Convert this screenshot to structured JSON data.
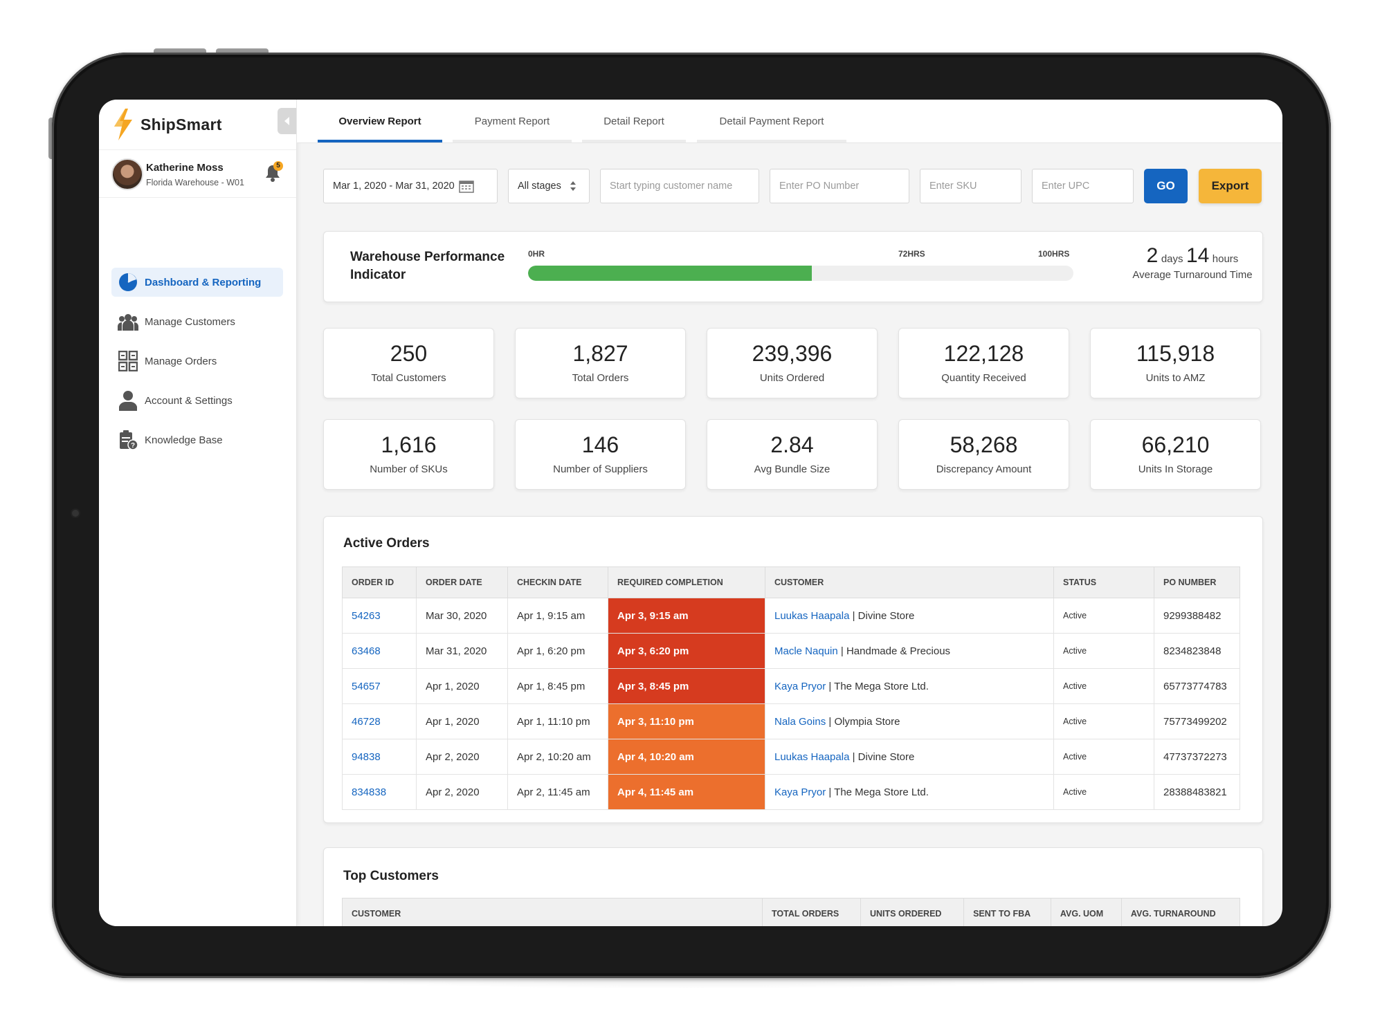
{
  "app": {
    "name": "ShipSmart",
    "user": {
      "name": "Katherine Moss",
      "location": "Florida Warehouse - W01",
      "notifications": "5"
    }
  },
  "sidebar": {
    "items": [
      {
        "label": "Dashboard & Reporting",
        "icon": "pie-chart-icon",
        "active": true
      },
      {
        "label": "Manage Customers",
        "icon": "users-icon",
        "active": false
      },
      {
        "label": "Manage Orders",
        "icon": "orders-grid-icon",
        "active": false
      },
      {
        "label": "Account & Settings",
        "icon": "user-icon",
        "active": false
      },
      {
        "label": "Knowledge Base",
        "icon": "clipboard-help-icon",
        "active": false
      }
    ]
  },
  "tabs": [
    {
      "label": "Overview Report",
      "active": true
    },
    {
      "label": "Payment Report",
      "active": false
    },
    {
      "label": "Detail Report",
      "active": false
    },
    {
      "label": "Detail Payment Report",
      "active": false
    }
  ],
  "filters": {
    "date_range": "Mar 1, 2020 - Mar 31, 2020",
    "stage": "All stages",
    "customer_placeholder": "Start typing customer name",
    "po_placeholder": "Enter PO Number",
    "sku_placeholder": "Enter SKU",
    "upc_placeholder": "Enter UPC",
    "go_label": "GO",
    "export_label": "Export"
  },
  "performance": {
    "title": "Warehouse Performance Indicator",
    "tick_start": "0HR",
    "tick_mid": "72HRS",
    "tick_end": "100HRS",
    "fill_fraction": 0.52,
    "turnaround_days": "2",
    "days_unit": "days",
    "turnaround_hours": "14",
    "hours_unit": "hours",
    "turnaround_caption": "Average Turnaround Time"
  },
  "stats": [
    {
      "value": "250",
      "label": "Total Customers"
    },
    {
      "value": "1,827",
      "label": "Total Orders"
    },
    {
      "value": "239,396",
      "label": "Units Ordered"
    },
    {
      "value": "122,128",
      "label": "Quantity Received"
    },
    {
      "value": "115,918",
      "label": "Units to AMZ"
    },
    {
      "value": "1,616",
      "label": "Number of SKUs"
    },
    {
      "value": "146",
      "label": "Number of Suppliers"
    },
    {
      "value": "2.84",
      "label": "Avg Bundle Size"
    },
    {
      "value": "58,268",
      "label": "Discrepancy Amount"
    },
    {
      "value": "66,210",
      "label": "Units In Storage"
    }
  ],
  "active_orders": {
    "title": "Active Orders",
    "columns": [
      "ORDER ID",
      "ORDER DATE",
      "CHECKIN DATE",
      "REQUIRED COMPLETION",
      "CUSTOMER",
      "STATUS",
      "PO NUMBER"
    ],
    "rows": [
      {
        "id": "54263",
        "order_date": "Mar 30, 2020",
        "checkin": "Apr 1, 9:15 am",
        "required": "Apr 3, 9:15 am",
        "urgency": "#d63b1f",
        "contact": "Luukas Haapala",
        "company": "Divine Store",
        "status": "Active",
        "po": "9299388482"
      },
      {
        "id": "63468",
        "order_date": "Mar 31, 2020",
        "checkin": "Apr 1, 6:20 pm",
        "required": "Apr 3, 6:20 pm",
        "urgency": "#d63b1f",
        "contact": "Macle Naquin",
        "company": "Handmade & Precious",
        "status": "Active",
        "po": "8234823848"
      },
      {
        "id": "54657",
        "order_date": "Apr 1, 2020",
        "checkin": "Apr 1, 8:45 pm",
        "required": "Apr 3, 8:45 pm",
        "urgency": "#d63b1f",
        "contact": "Kaya Pryor",
        "company": "The Mega Store Ltd.",
        "status": "Active",
        "po": "65773774783"
      },
      {
        "id": "46728",
        "order_date": "Apr 1, 2020",
        "checkin": "Apr 1, 11:10 pm",
        "required": "Apr 3, 11:10 pm",
        "urgency": "#ec6f2d",
        "contact": "Nala Goins",
        "company": "Olympia Store",
        "status": "Active",
        "po": "75773499202"
      },
      {
        "id": "94838",
        "order_date": "Apr 2, 2020",
        "checkin": "Apr 2, 10:20 am",
        "required": "Apr 4, 10:20 am",
        "urgency": "#ec6f2d",
        "contact": "Luukas Haapala",
        "company": "Divine Store",
        "status": "Active",
        "po": "47737372273"
      },
      {
        "id": "834838",
        "order_date": "Apr 2, 2020",
        "checkin": "Apr 2, 11:45 am",
        "required": "Apr 4, 11:45 am",
        "urgency": "#ec6f2d",
        "contact": "Kaya Pryor",
        "company": "The Mega Store Ltd.",
        "status": "Active",
        "po": "28388483821"
      }
    ]
  },
  "top_customers": {
    "title": "Top Customers",
    "columns": [
      "CUSTOMER",
      "TOTAL ORDERS",
      "UNITS ORDERED",
      "SENT TO FBA",
      "AVG. UOM",
      "AVG. TURNAROUND"
    ]
  },
  "colors": {
    "brand_blue": "#1565c0",
    "accent_orange": "#f5b63a",
    "progress_green": "#4caf50",
    "urgent_red": "#d63b1f",
    "warning_orange": "#ec6f2d"
  }
}
